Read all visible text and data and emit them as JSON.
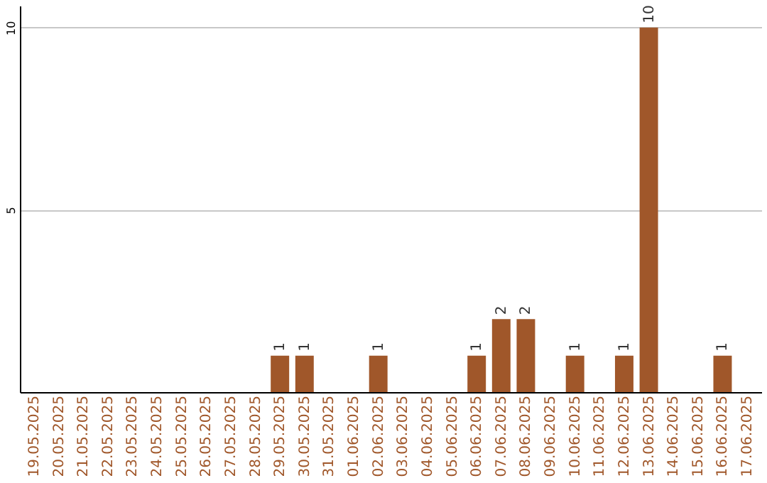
{
  "chart_data": {
    "type": "bar",
    "categories": [
      "19.05.2025",
      "20.05.2025",
      "21.05.2025",
      "22.05.2025",
      "23.05.2025",
      "24.05.2025",
      "25.05.2025",
      "26.05.2025",
      "27.05.2025",
      "28.05.2025",
      "29.05.2025",
      "30.05.2025",
      "31.05.2025",
      "01.06.2025",
      "02.06.2025",
      "03.06.2025",
      "04.06.2025",
      "05.06.2025",
      "06.06.2025",
      "07.06.2025",
      "08.06.2025",
      "09.06.2025",
      "10.06.2025",
      "11.06.2025",
      "12.06.2025",
      "13.06.2025",
      "14.06.2025",
      "15.06.2025",
      "16.06.2025",
      "17.06.2025"
    ],
    "values": [
      0,
      0,
      0,
      0,
      0,
      0,
      0,
      0,
      0,
      0,
      1,
      1,
      0,
      0,
      1,
      0,
      0,
      0,
      1,
      2,
      2,
      0,
      1,
      0,
      1,
      10,
      0,
      0,
      1,
      0
    ],
    "value_labels": [
      null,
      null,
      null,
      null,
      null,
      null,
      null,
      null,
      null,
      null,
      "1",
      "1",
      null,
      null,
      "1",
      null,
      null,
      null,
      "1",
      "2",
      "2",
      null,
      "1",
      null,
      "1",
      "10",
      null,
      null,
      "1",
      null
    ],
    "color": "#a0572a",
    "ylim": [
      0,
      10.6
    ],
    "yticks": [
      5,
      10
    ],
    "grid": "y"
  }
}
